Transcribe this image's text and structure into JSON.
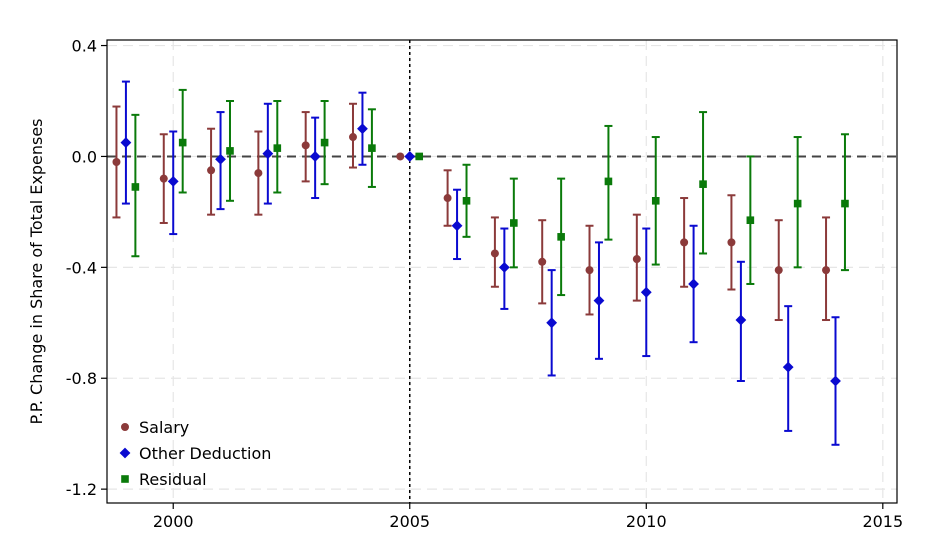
{
  "chart_data": {
    "type": "scatter",
    "title": "",
    "xlabel": "",
    "ylabel": "P.P. Change in Share of Total Expenses",
    "xlim": [
      1998.6,
      2015.3
    ],
    "ylim": [
      -1.25,
      0.42
    ],
    "xticks": [
      2000,
      2005,
      2010,
      2015
    ],
    "xtick_labels": [
      "2000",
      "2005",
      "2010",
      "2015"
    ],
    "yticks": [
      0.4,
      0.0,
      -0.4,
      -0.8,
      -1.2
    ],
    "ytick_labels": [
      "0.4",
      "0.0",
      "-0.4",
      "-0.8",
      "-1.2"
    ],
    "grid": true,
    "reference_lines": {
      "horizontal_y": 0.0,
      "vertical_x": 2005
    },
    "legend_position": "bottom-left",
    "x": [
      1999,
      2000,
      2001,
      2002,
      2003,
      2004,
      2005,
      2006,
      2007,
      2008,
      2009,
      2010,
      2011,
      2012,
      2013,
      2014
    ],
    "series": [
      {
        "name": "Salary",
        "color": "#8b3a3a",
        "marker": "circle",
        "offset": -0.2,
        "values": [
          -0.02,
          -0.08,
          -0.05,
          -0.06,
          0.04,
          0.07,
          0.0,
          -0.15,
          -0.35,
          -0.38,
          -0.41,
          -0.37,
          -0.31,
          -0.31,
          -0.41,
          -0.41
        ],
        "lower": [
          -0.22,
          -0.24,
          -0.21,
          -0.21,
          -0.09,
          -0.04,
          0.0,
          -0.25,
          -0.47,
          -0.53,
          -0.57,
          -0.52,
          -0.47,
          -0.48,
          -0.59,
          -0.59
        ],
        "upper": [
          0.18,
          0.08,
          0.1,
          0.09,
          0.16,
          0.19,
          0.0,
          -0.05,
          -0.22,
          -0.23,
          -0.25,
          -0.21,
          -0.15,
          -0.14,
          -0.23,
          -0.22
        ]
      },
      {
        "name": "Other Deduction",
        "color": "#0a0ad0",
        "marker": "diamond",
        "offset": 0.0,
        "values": [
          0.05,
          -0.09,
          -0.01,
          0.01,
          0.0,
          0.1,
          0.0,
          -0.25,
          -0.4,
          -0.6,
          -0.52,
          -0.49,
          -0.46,
          -0.59,
          -0.76,
          -0.81
        ],
        "lower": [
          -0.17,
          -0.28,
          -0.19,
          -0.17,
          -0.15,
          -0.03,
          0.0,
          -0.37,
          -0.55,
          -0.79,
          -0.73,
          -0.72,
          -0.67,
          -0.81,
          -0.99,
          -1.04
        ],
        "upper": [
          0.27,
          0.09,
          0.16,
          0.19,
          0.14,
          0.23,
          0.0,
          -0.12,
          -0.26,
          -0.41,
          -0.31,
          -0.26,
          -0.25,
          -0.38,
          -0.54,
          -0.58
        ]
      },
      {
        "name": "Residual",
        "color": "#0a7a0a",
        "marker": "square",
        "offset": 0.2,
        "values": [
          -0.11,
          0.05,
          0.02,
          0.03,
          0.05,
          0.03,
          0.0,
          -0.16,
          -0.24,
          -0.29,
          -0.09,
          -0.16,
          -0.1,
          -0.23,
          -0.17,
          -0.17
        ],
        "lower": [
          -0.36,
          -0.13,
          -0.16,
          -0.13,
          -0.1,
          -0.11,
          0.0,
          -0.29,
          -0.4,
          -0.5,
          -0.3,
          -0.39,
          -0.35,
          -0.46,
          -0.4,
          -0.41
        ],
        "upper": [
          0.15,
          0.24,
          0.2,
          0.2,
          0.2,
          0.17,
          0.0,
          -0.03,
          -0.08,
          -0.08,
          0.11,
          0.07,
          0.16,
          0.0,
          0.07,
          0.08
        ]
      }
    ]
  }
}
